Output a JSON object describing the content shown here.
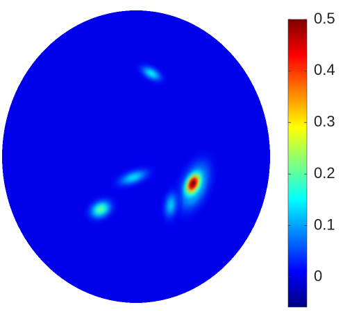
{
  "chart_data": {
    "type": "heatmap",
    "colormap": "jet",
    "clim": [
      -0.058,
      0.5
    ],
    "ticks": [
      0,
      0.1,
      0.2,
      0.3,
      0.4,
      0.5
    ],
    "background_value": 0,
    "blobs": [
      {
        "peak": 0.14
      },
      {
        "peak": 0.2
      },
      {
        "peak": 0.5
      },
      {
        "peak": 0.2
      },
      {
        "peak": 0.13
      },
      {
        "peak": 0.12
      }
    ]
  }
}
